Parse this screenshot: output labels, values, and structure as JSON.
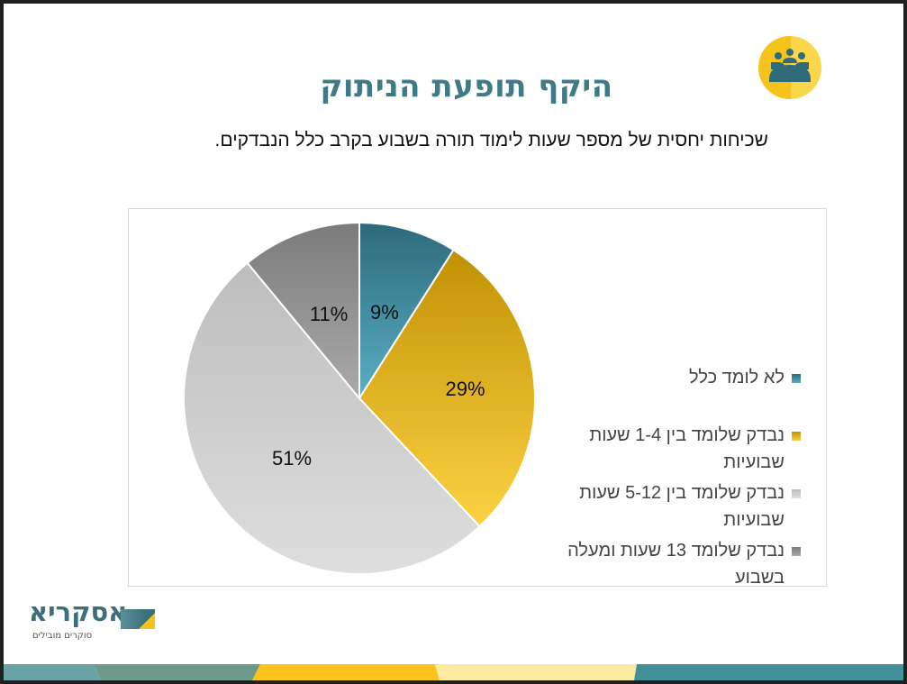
{
  "slide": {
    "title": "היקף תופעת הניתוק",
    "subtitle": "שכיחות יחסית של מספר שעות לימוד תורה בשבוע בקרב כלל הנבדקים.",
    "badge_icon": "people-meeting-icon",
    "logo": {
      "name": "אסקריא",
      "tagline": "סוקרים מובילים"
    }
  },
  "colors": {
    "title": "#3f7a87",
    "teal": "#3a7a8c",
    "gold": "#d9a91c",
    "light_gray": "#d2d2d2",
    "dark_gray": "#8c8c8c",
    "badge_yellow": "#f6c21c"
  },
  "chart_data": {
    "type": "pie",
    "title": "",
    "categories": [
      "לא לומד כלל",
      "נבדק שלומד בין 1-4 שעות שבועיות",
      "נבדק שלומד בין 5-12 שעות שבועיות",
      "נבדק שלומד 13 שעות ומעלה בשבוע"
    ],
    "values": [
      9,
      29,
      51,
      11
    ],
    "labels": [
      "9%",
      "29%",
      "51%",
      "11%"
    ],
    "colors": [
      "#3a7a8c",
      "#d9a91c",
      "#d2d2d2",
      "#8c8c8c"
    ],
    "start_angle": "12 o'clock",
    "direction": "clockwise",
    "legend_position": "right"
  },
  "legend": [
    {
      "line1": "לא לומד כלל",
      "line2": ""
    },
    {
      "line1": "נבדק שלומד בין 1-4 שעות",
      "line2": "שבועיות"
    },
    {
      "line1": "נבדק שלומד בין 5-12 שעות",
      "line2": "שבועיות"
    },
    {
      "line1": "נבדק שלומד 13 שעות ומעלה",
      "line2": "בשבוע"
    }
  ]
}
